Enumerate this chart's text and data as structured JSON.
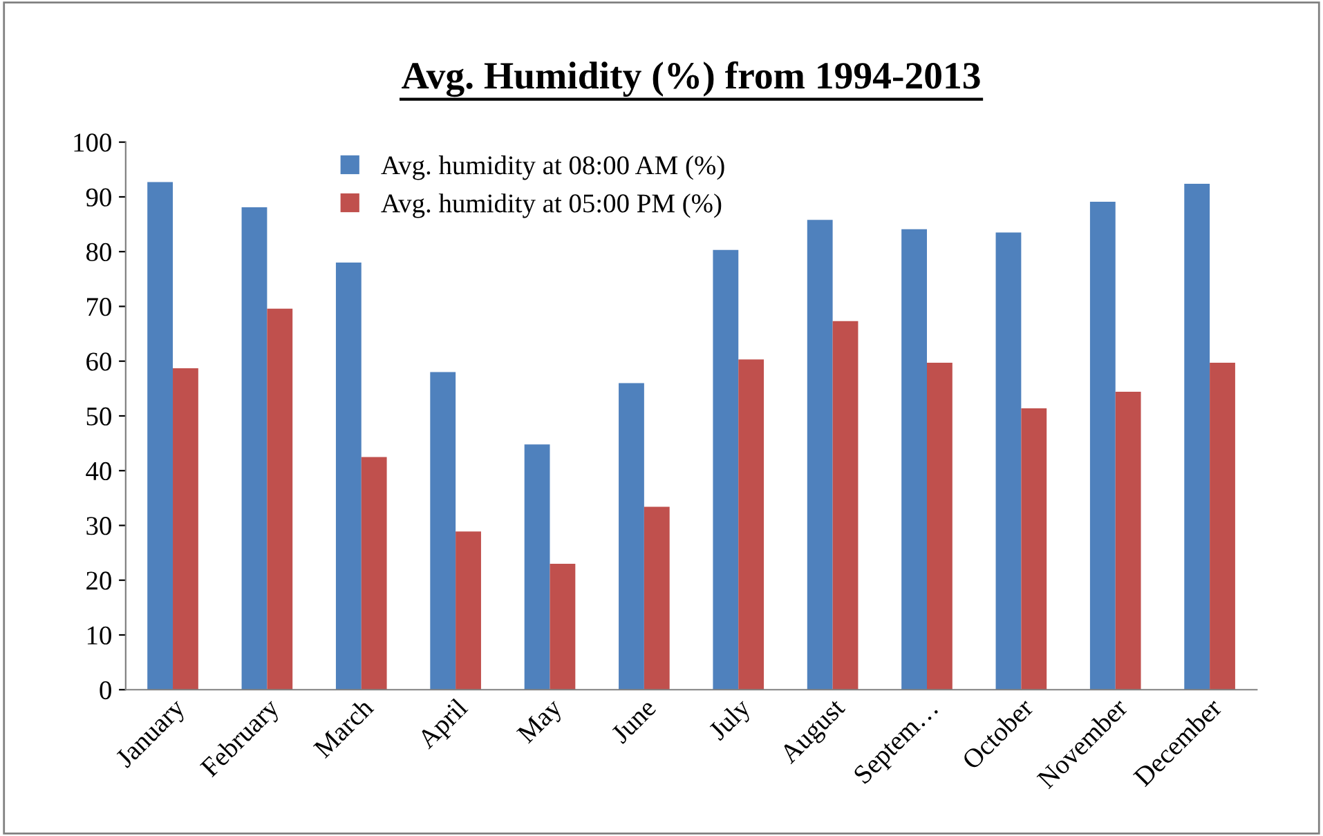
{
  "chart_data": {
    "type": "bar",
    "title": "Avg. Humidity (%) from 1994-2013",
    "categories": [
      "January",
      "February",
      "March",
      "April",
      "May",
      "June",
      "July",
      "August",
      "Septem…",
      "October",
      "November",
      "December"
    ],
    "series": [
      {
        "name": "Avg. humidity at 08:00 AM (%)",
        "color": "#4f81bd",
        "values": [
          92.7,
          88.1,
          78.0,
          58.0,
          44.8,
          56.0,
          80.3,
          85.8,
          84.1,
          83.5,
          89.1,
          92.4
        ]
      },
      {
        "name": "Avg. humidity at 05:00 PM (%)",
        "color": "#c0504d",
        "values": [
          58.7,
          69.6,
          42.5,
          28.9,
          23.0,
          33.4,
          60.3,
          67.3,
          59.7,
          51.4,
          54.4,
          59.7
        ]
      }
    ],
    "ylim": [
      0,
      100
    ],
    "yticks": [
      0,
      10,
      20,
      30,
      40,
      50,
      60,
      70,
      80,
      90,
      100
    ],
    "grid": false,
    "legend": "top"
  }
}
